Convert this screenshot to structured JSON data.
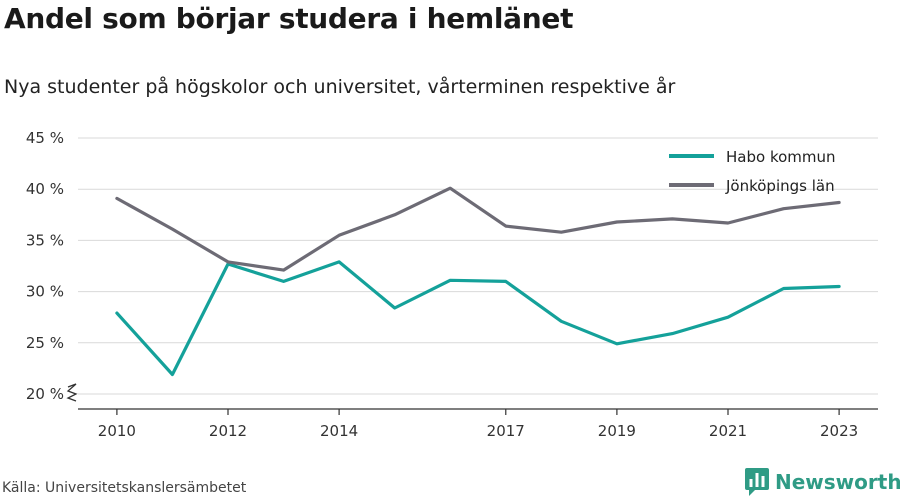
{
  "header": {
    "title": "Andel som börjar studera i hemlänet",
    "subtitle": "Nya studenter på högskolor och universitet, vårterminen respektive år"
  },
  "footer": {
    "source": "Källa: Universitetskanslersämbetet",
    "brand_name": "Newsworthy",
    "brand_icon": "bar-chart-icon",
    "brand_color": "#2f9b85"
  },
  "chart_data": {
    "type": "line",
    "title": "Andel som börjar studera i hemlänet",
    "subtitle": "Nya studenter på högskolor och universitet, vårterminen respektive år",
    "xlabel": "",
    "ylabel": "",
    "x": [
      2010,
      2011,
      2012,
      2013,
      2014,
      2015,
      2016,
      2017,
      2018,
      2019,
      2020,
      2021,
      2022,
      2023
    ],
    "xticks": [
      2010,
      2012,
      2014,
      2017,
      2019,
      2021,
      2023
    ],
    "xtick_labels": [
      "2010",
      "2012",
      "2014",
      "2017",
      "2019",
      "2021",
      "2023"
    ],
    "xlim": [
      2009.3,
      2023.7
    ],
    "ylim": [
      20,
      45
    ],
    "yticks": [
      20,
      25,
      30,
      35,
      40,
      45
    ],
    "ytick_labels": [
      "20 %",
      "25 %",
      "30 %",
      "35 %",
      "40 %",
      "45 %"
    ],
    "y_axis_break": true,
    "grid": true,
    "legend_position": "top-right",
    "series": [
      {
        "name": "Habo kommun",
        "color": "#14a19a",
        "values": [
          27.9,
          21.9,
          32.7,
          31.0,
          32.9,
          28.4,
          31.1,
          31.0,
          27.1,
          24.9,
          25.9,
          27.5,
          30.3,
          30.5
        ]
      },
      {
        "name": "Jönköpings län",
        "color": "#6d6b75",
        "values": [
          39.1,
          36.1,
          32.9,
          32.1,
          35.5,
          37.5,
          40.1,
          36.4,
          35.8,
          36.8,
          37.1,
          36.7,
          38.1,
          38.7
        ]
      }
    ]
  }
}
